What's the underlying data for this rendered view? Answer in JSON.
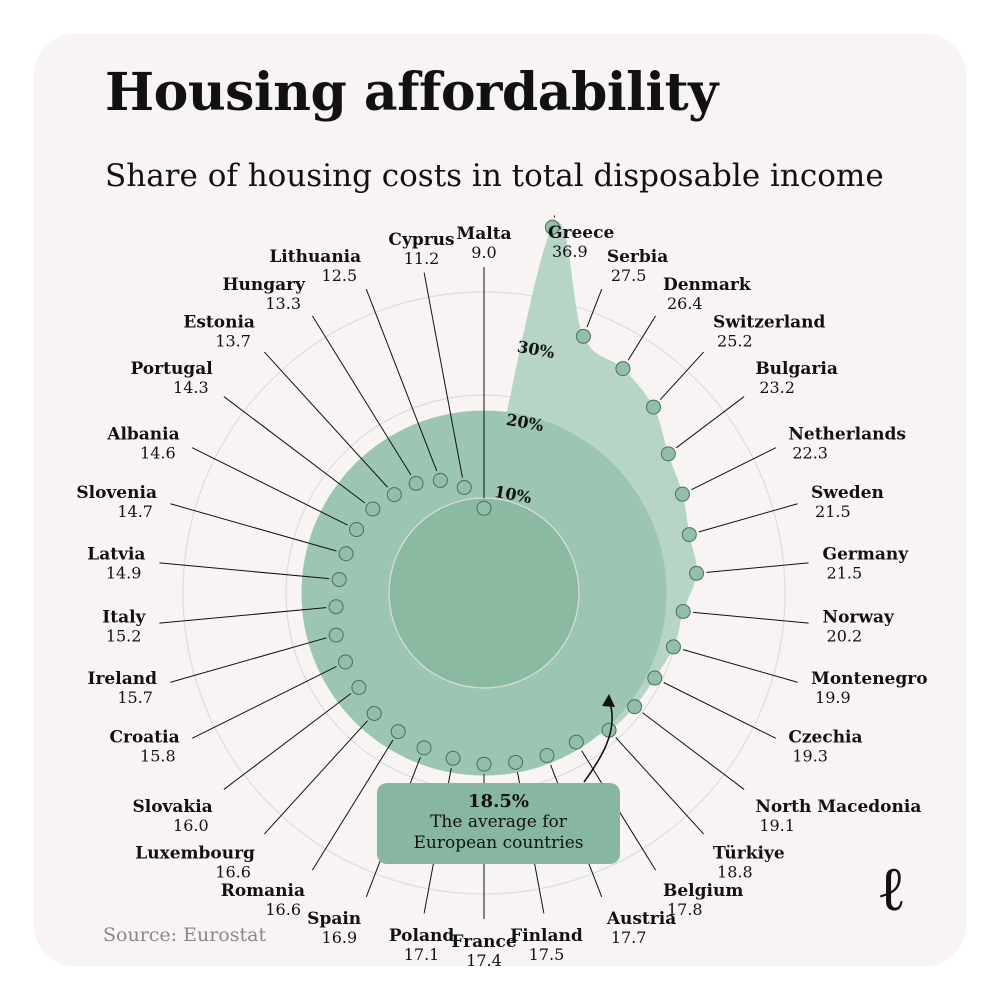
{
  "title": "Housing affordability",
  "subtitle": "Share of housing costs in total disposable income",
  "source": "Source: Eurostat",
  "logo": "ℓ",
  "average": {
    "value": "18.5%",
    "text_line1": "The average for",
    "text_line2": "European countries"
  },
  "colors": {
    "fill_light": "#b6d5c6",
    "fill_mid": "#9cc6b1",
    "fill_inner": "#8bbaa3",
    "dot": "#92bfaa",
    "dot_stroke": "#4c6e5e",
    "grid": "#dcdcdc",
    "leader": "#111111",
    "box": "#87b7a1"
  },
  "chart_data": {
    "type": "radial-bar",
    "title": "Housing affordability",
    "subtitle": "Share of housing costs in total disposable income",
    "unit": "%",
    "ring_labels": [
      "10%",
      "20%",
      "30%"
    ],
    "ring_values": [
      10,
      20,
      30
    ],
    "average": 18.5,
    "categories": [
      "Malta",
      "Greece",
      "Serbia",
      "Denmark",
      "Switzerland",
      "Bulgaria",
      "Netherlands",
      "Sweden",
      "Germany",
      "Norway",
      "Montenegro",
      "Czechia",
      "North Macedonia",
      "Türkiye",
      "Belgium",
      "Austria",
      "Finland",
      "France",
      "Poland",
      "Spain",
      "Romania",
      "Luxembourg",
      "Slovakia",
      "Croatia",
      "Ireland",
      "Italy",
      "Latvia",
      "Slovenia",
      "Albania",
      "Portugal",
      "Estonia",
      "Hungary",
      "Lithuania",
      "Cyprus"
    ],
    "values": [
      9.0,
      36.9,
      27.5,
      26.4,
      25.2,
      23.2,
      22.3,
      21.5,
      21.5,
      20.2,
      19.9,
      19.3,
      19.1,
      18.8,
      17.8,
      17.7,
      17.5,
      17.4,
      17.1,
      16.9,
      16.6,
      16.6,
      16.0,
      15.8,
      15.7,
      15.2,
      14.9,
      14.7,
      14.6,
      14.3,
      13.7,
      13.3,
      12.5,
      11.2
    ]
  }
}
